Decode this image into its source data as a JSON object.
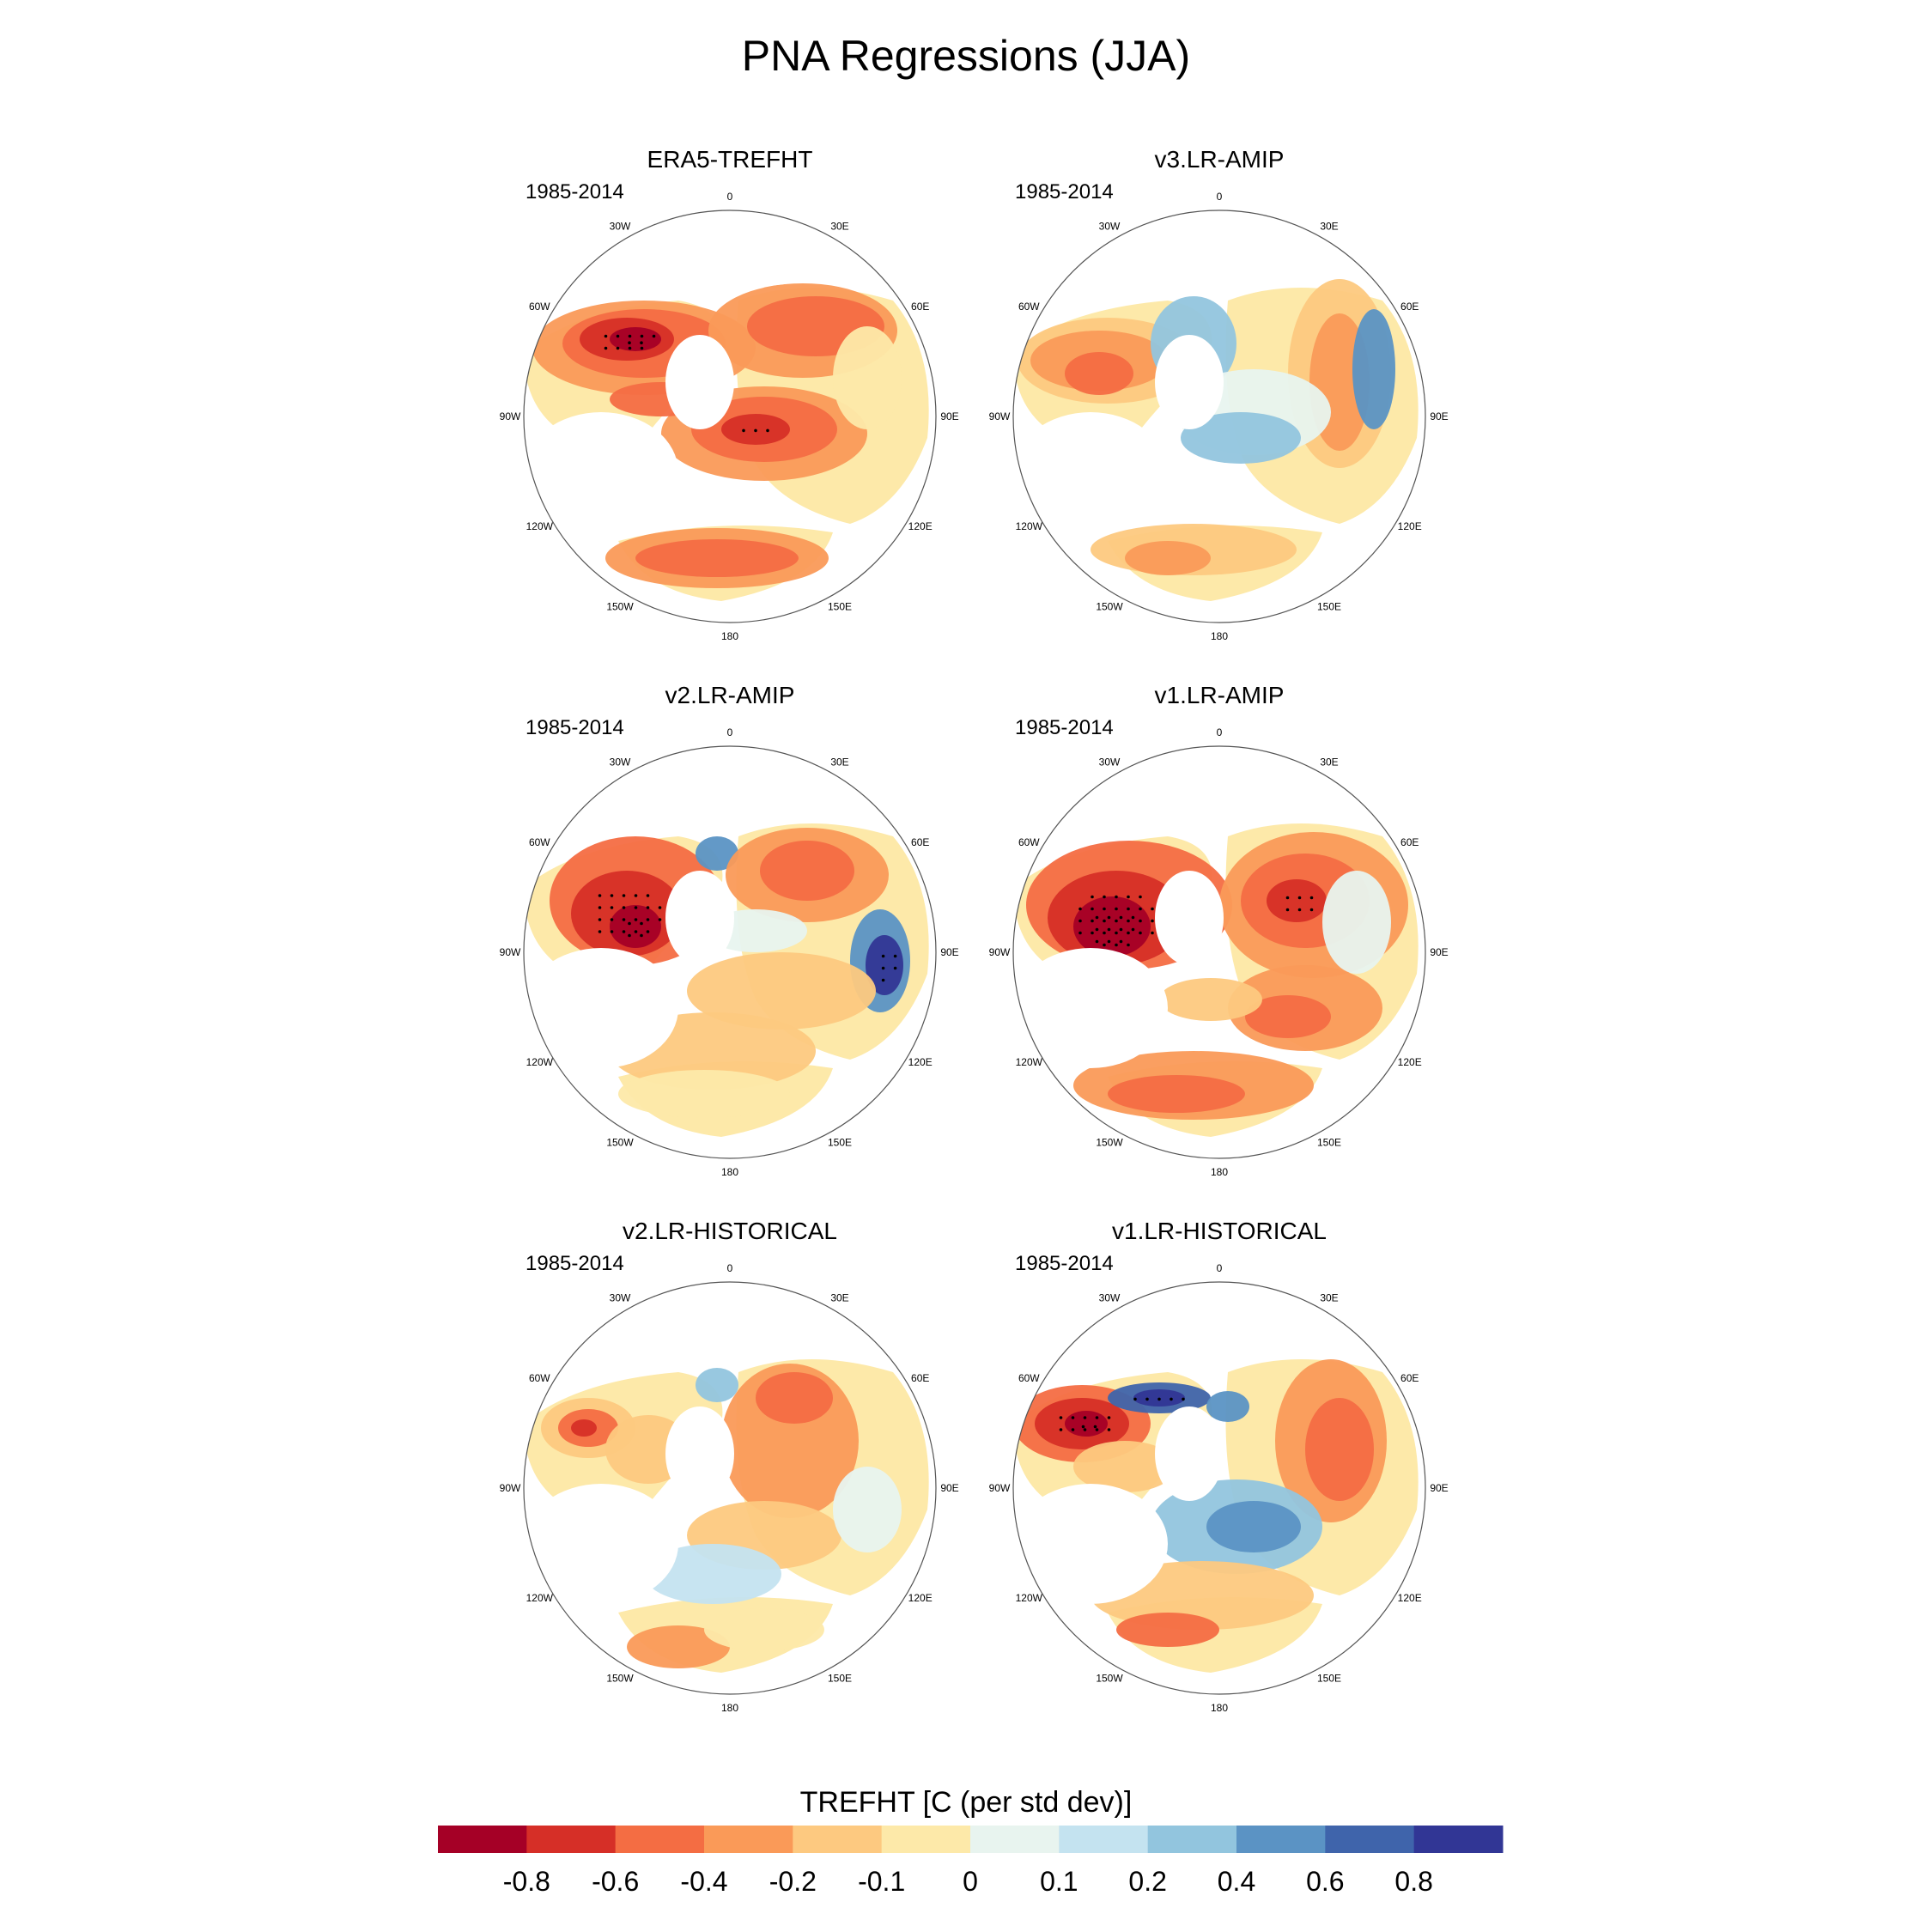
{
  "title": "PNA Regressions (JJA)",
  "panels": [
    {
      "title": "ERA5-TREFHT",
      "period": "1985-2014",
      "pattern": "era5"
    },
    {
      "title": "v3.LR-AMIP",
      "period": "1985-2014",
      "pattern": "v3amip"
    },
    {
      "title": "v2.LR-AMIP",
      "period": "1985-2014",
      "pattern": "v2amip"
    },
    {
      "title": "v1.LR-AMIP",
      "period": "1985-2014",
      "pattern": "v1amip"
    },
    {
      "title": "v2.LR-HISTORICAL",
      "period": "1985-2014",
      "pattern": "v2hist"
    },
    {
      "title": "v1.LR-HISTORICAL",
      "period": "1985-2014",
      "pattern": "v1hist"
    }
  ],
  "lon_labels": [
    "180",
    "150E",
    "120E",
    "90E",
    "60E",
    "30E",
    "0",
    "30W",
    "60W",
    "90W",
    "120W",
    "150W"
  ],
  "colorbar": {
    "title": "TREFHT [C (per std dev)]",
    "colors": [
      "#a50026",
      "#d62f27",
      "#f46d43",
      "#fa9a58",
      "#fdc980",
      "#fde9a9",
      "#e8f4ef",
      "#c4e3f0",
      "#92c5de",
      "#5b93c4",
      "#3f64ab",
      "#313695"
    ],
    "ticks": [
      "-0.8",
      "-0.6",
      "-0.4",
      "-0.2",
      "-0.1",
      "0",
      "0.1",
      "0.2",
      "0.4",
      "0.6",
      "0.8"
    ]
  }
}
